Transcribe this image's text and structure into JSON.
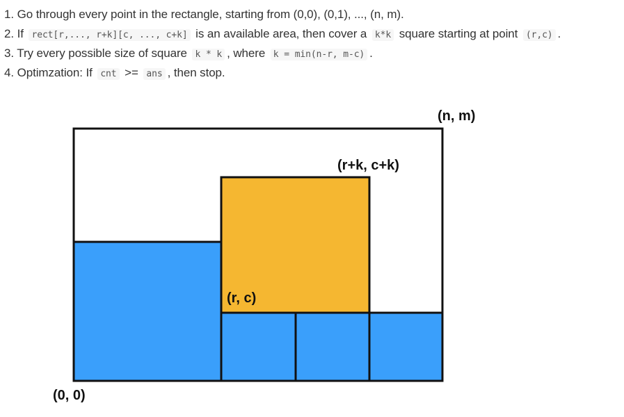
{
  "steps": [
    {
      "parts": [
        {
          "type": "text",
          "value": "1. Go through every point in the rectangle, starting from (0,0), (0,1), ..., (n, m)."
        }
      ]
    },
    {
      "parts": [
        {
          "type": "text",
          "value": "2. If "
        },
        {
          "type": "code",
          "value": "rect[r,..., r+k][c, ..., c+k]"
        },
        {
          "type": "text",
          "value": " is an available area, then cover a "
        },
        {
          "type": "code",
          "value": "k*k"
        },
        {
          "type": "text",
          "value": " square starting at point "
        },
        {
          "type": "code",
          "value": "(r,c)"
        },
        {
          "type": "text",
          "value": "."
        }
      ]
    },
    {
      "parts": [
        {
          "type": "text",
          "value": "3. Try every possible size of square "
        },
        {
          "type": "code",
          "value": "k * k"
        },
        {
          "type": "text",
          "value": ", where "
        },
        {
          "type": "code",
          "value": "k = min(n-r, m-c)"
        },
        {
          "type": "text",
          "value": "."
        }
      ]
    },
    {
      "parts": [
        {
          "type": "text",
          "value": "4. Optimzation: If "
        },
        {
          "type": "code",
          "value": "cnt"
        },
        {
          "type": "text",
          "value": " >= "
        },
        {
          "type": "code",
          "value": "ans"
        },
        {
          "type": "text",
          "value": ", then stop."
        }
      ]
    }
  ],
  "diagram": {
    "labels": {
      "corner_top_right": "(n, m)",
      "corner_bottom_left": "(0, 0)",
      "square_top_right": "(r+k, c+k)",
      "square_bottom_left": "(r, c)"
    },
    "colors": {
      "blue": "#3a9ffb",
      "orange": "#f5b731",
      "outline": "#111111",
      "background": "#ffffff"
    }
  }
}
